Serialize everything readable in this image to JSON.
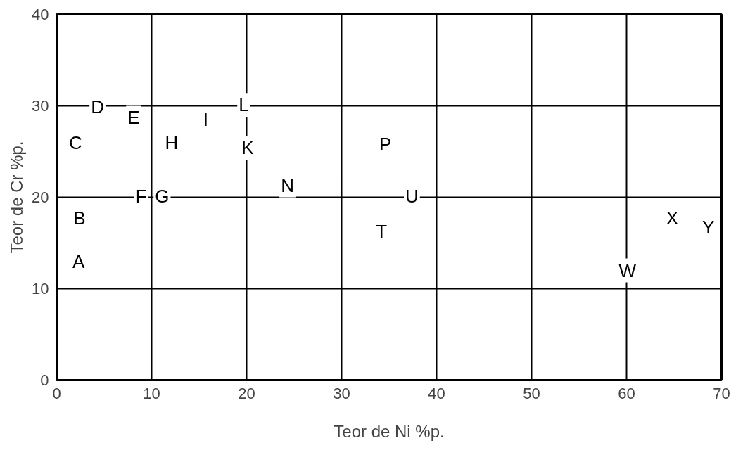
{
  "chart_data": {
    "type": "scatter",
    "xlabel": "Teor de Ni %p.",
    "ylabel": "Teor de Cr %p.",
    "xlim": [
      0,
      70
    ],
    "ylim": [
      0,
      40
    ],
    "xticks": [
      0,
      10,
      20,
      30,
      40,
      50,
      60,
      70
    ],
    "yticks": [
      0,
      10,
      20,
      30,
      40
    ],
    "grid": true,
    "annotations": [
      {
        "text": "A",
        "x": 2.3,
        "y": 13.0
      },
      {
        "text": "B",
        "x": 2.4,
        "y": 17.7
      },
      {
        "text": "C",
        "x": 2.0,
        "y": 26.0
      },
      {
        "text": "D",
        "x": 4.3,
        "y": 29.9
      },
      {
        "text": "E",
        "x": 8.1,
        "y": 28.7
      },
      {
        "text": "F",
        "x": 8.9,
        "y": 20.1
      },
      {
        "text": "G",
        "x": 11.1,
        "y": 20.1
      },
      {
        "text": "H",
        "x": 12.1,
        "y": 26.0
      },
      {
        "text": "I",
        "x": 15.7,
        "y": 28.5
      },
      {
        "text": "L",
        "x": 19.7,
        "y": 30.1
      },
      {
        "text": "K",
        "x": 20.1,
        "y": 25.4
      },
      {
        "text": "N",
        "x": 24.3,
        "y": 21.3
      },
      {
        "text": "P",
        "x": 34.6,
        "y": 25.8
      },
      {
        "text": "U",
        "x": 37.4,
        "y": 20.1
      },
      {
        "text": "T",
        "x": 34.2,
        "y": 16.3
      },
      {
        "text": "W",
        "x": 60.1,
        "y": 12.0
      },
      {
        "text": "X",
        "x": 64.8,
        "y": 17.7
      },
      {
        "text": "Y",
        "x": 68.6,
        "y": 16.7
      }
    ]
  }
}
